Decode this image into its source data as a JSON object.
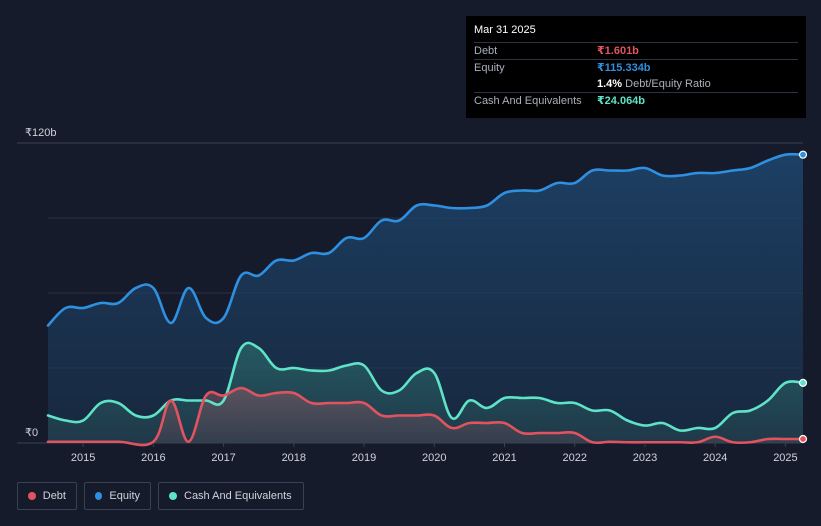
{
  "tooltip": {
    "date": "Mar 31 2025",
    "debt_label": "Debt",
    "debt_value": "₹1.601b",
    "equity_label": "Equity",
    "equity_value": "₹115.334b",
    "ratio_value": "1.4%",
    "ratio_label": "Debt/Equity Ratio",
    "cash_label": "Cash And Equivalents",
    "cash_value": "₹24.064b"
  },
  "legend": [
    {
      "label": "Debt",
      "color": "#e25360"
    },
    {
      "label": "Equity",
      "color": "#2f8fe0"
    },
    {
      "label": "Cash And Equivalents",
      "color": "#5ee3c8"
    }
  ],
  "colors": {
    "debt": "#e25360",
    "equity": "#2f8fe0",
    "cash": "#5ee3c8",
    "background": "#151b2a",
    "grid": "#2a3140"
  },
  "chart_data": {
    "type": "area",
    "title": "",
    "xlabel": "",
    "ylabel": "",
    "y_unit": "₹b",
    "ylim": [
      0,
      120
    ],
    "xlim": [
      2014.5,
      2025.25
    ],
    "y_tick_labels": [
      {
        "value": 120,
        "label": "₹120b"
      },
      {
        "value": 0,
        "label": "₹0"
      }
    ],
    "x_ticks": [
      2015,
      2016,
      2017,
      2018,
      2019,
      2020,
      2021,
      2022,
      2023,
      2024,
      2025
    ],
    "series": [
      {
        "name": "Equity",
        "key": "equity",
        "points": [
          [
            2014.5,
            47
          ],
          [
            2014.75,
            54
          ],
          [
            2015.0,
            54
          ],
          [
            2015.25,
            56
          ],
          [
            2015.5,
            56
          ],
          [
            2015.75,
            62
          ],
          [
            2016.0,
            62
          ],
          [
            2016.25,
            48
          ],
          [
            2016.5,
            62
          ],
          [
            2016.75,
            50
          ],
          [
            2017.0,
            50
          ],
          [
            2017.25,
            67
          ],
          [
            2017.5,
            67
          ],
          [
            2017.75,
            73
          ],
          [
            2018.0,
            73
          ],
          [
            2018.25,
            76
          ],
          [
            2018.5,
            76
          ],
          [
            2018.75,
            82
          ],
          [
            2019.0,
            82
          ],
          [
            2019.25,
            89
          ],
          [
            2019.5,
            89
          ],
          [
            2019.75,
            95
          ],
          [
            2020.0,
            95
          ],
          [
            2020.25,
            94
          ],
          [
            2020.5,
            94
          ],
          [
            2020.75,
            95
          ],
          [
            2021.0,
            100
          ],
          [
            2021.25,
            101
          ],
          [
            2021.5,
            101
          ],
          [
            2021.75,
            104
          ],
          [
            2022.0,
            104
          ],
          [
            2022.25,
            109
          ],
          [
            2022.5,
            109
          ],
          [
            2022.75,
            109
          ],
          [
            2023.0,
            110
          ],
          [
            2023.25,
            107
          ],
          [
            2023.5,
            107
          ],
          [
            2023.75,
            108
          ],
          [
            2024.0,
            108
          ],
          [
            2024.25,
            109
          ],
          [
            2024.5,
            110
          ],
          [
            2024.75,
            113
          ],
          [
            2025.0,
            115.334
          ],
          [
            2025.25,
            115.334
          ]
        ]
      },
      {
        "name": "Cash And Equivalents",
        "key": "cash",
        "points": [
          [
            2014.5,
            11
          ],
          [
            2014.75,
            9
          ],
          [
            2015.0,
            9
          ],
          [
            2015.25,
            16
          ],
          [
            2015.5,
            16
          ],
          [
            2015.75,
            11
          ],
          [
            2016.0,
            11
          ],
          [
            2016.25,
            17
          ],
          [
            2016.5,
            17
          ],
          [
            2016.75,
            17
          ],
          [
            2017.0,
            17
          ],
          [
            2017.25,
            38
          ],
          [
            2017.5,
            38
          ],
          [
            2017.75,
            30
          ],
          [
            2018.0,
            30
          ],
          [
            2018.25,
            29
          ],
          [
            2018.5,
            29
          ],
          [
            2018.75,
            31
          ],
          [
            2019.0,
            31
          ],
          [
            2019.25,
            21
          ],
          [
            2019.5,
            21
          ],
          [
            2019.75,
            28
          ],
          [
            2020.0,
            28
          ],
          [
            2020.25,
            10
          ],
          [
            2020.5,
            17
          ],
          [
            2020.75,
            14
          ],
          [
            2021.0,
            18
          ],
          [
            2021.25,
            18
          ],
          [
            2021.5,
            18
          ],
          [
            2021.75,
            16
          ],
          [
            2022.0,
            16
          ],
          [
            2022.25,
            13
          ],
          [
            2022.5,
            13
          ],
          [
            2022.75,
            9
          ],
          [
            2023.0,
            7
          ],
          [
            2023.25,
            8
          ],
          [
            2023.5,
            5
          ],
          [
            2023.75,
            6
          ],
          [
            2024.0,
            6
          ],
          [
            2024.25,
            12
          ],
          [
            2024.5,
            13
          ],
          [
            2024.75,
            17
          ],
          [
            2025.0,
            24.064
          ],
          [
            2025.25,
            24.064
          ]
        ]
      },
      {
        "name": "Debt",
        "key": "debt",
        "points": [
          [
            2014.5,
            0.5
          ],
          [
            2015.0,
            0.5
          ],
          [
            2015.5,
            0.5
          ],
          [
            2016.0,
            0.5
          ],
          [
            2016.25,
            17
          ],
          [
            2016.5,
            0.5
          ],
          [
            2016.75,
            19
          ],
          [
            2017.0,
            19
          ],
          [
            2017.25,
            22
          ],
          [
            2017.5,
            19
          ],
          [
            2017.75,
            20
          ],
          [
            2018.0,
            20
          ],
          [
            2018.25,
            16
          ],
          [
            2018.5,
            16
          ],
          [
            2018.75,
            16
          ],
          [
            2019.0,
            16
          ],
          [
            2019.25,
            11
          ],
          [
            2019.5,
            11
          ],
          [
            2019.75,
            11
          ],
          [
            2020.0,
            11
          ],
          [
            2020.25,
            6
          ],
          [
            2020.5,
            8
          ],
          [
            2020.75,
            8
          ],
          [
            2021.0,
            8
          ],
          [
            2021.25,
            4
          ],
          [
            2021.5,
            4
          ],
          [
            2021.75,
            4
          ],
          [
            2022.0,
            4
          ],
          [
            2022.25,
            0.3
          ],
          [
            2022.5,
            0.5
          ],
          [
            2022.75,
            0.3
          ],
          [
            2023.0,
            0.3
          ],
          [
            2023.5,
            0.3
          ],
          [
            2023.75,
            0.3
          ],
          [
            2024.0,
            2.5
          ],
          [
            2024.25,
            0.3
          ],
          [
            2024.5,
            0.3
          ],
          [
            2024.75,
            1.6
          ],
          [
            2025.0,
            1.601
          ],
          [
            2025.25,
            1.601
          ]
        ]
      }
    ]
  }
}
